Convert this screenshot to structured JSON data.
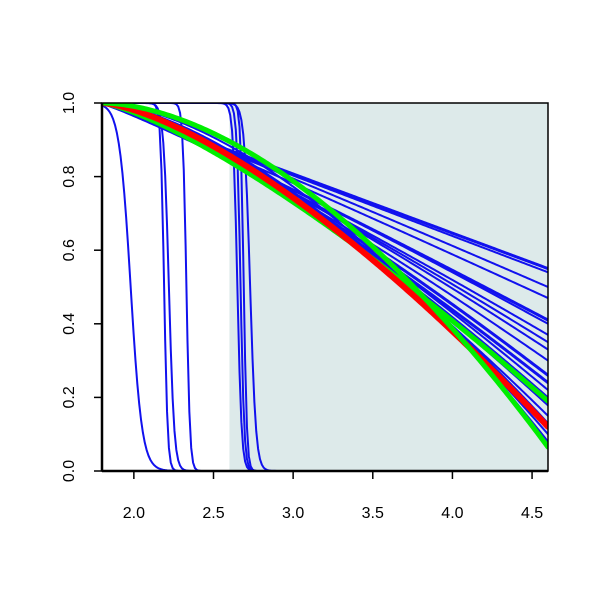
{
  "chart_data": {
    "type": "line",
    "title": "",
    "xlabel": "",
    "ylabel": "",
    "xlim": [
      1.8,
      4.6
    ],
    "ylim": [
      0.0,
      1.0
    ],
    "x_ticks": [
      "2.0",
      "2.5",
      "3.0",
      "3.5",
      "4.0",
      "4.5"
    ],
    "y_ticks": [
      "0.0",
      "0.2",
      "0.4",
      "0.6",
      "0.8",
      "1.0"
    ],
    "grid": false,
    "legend": "none",
    "shaded_region": {
      "x_start": 2.6,
      "x_end": 4.6,
      "color": "#ddeaea"
    },
    "colors": {
      "blue": "#1111ee",
      "red": "#ff0000",
      "green": "#00ee00"
    },
    "series": [
      {
        "color": "blue",
        "kind": "logistic",
        "x0": 1.98,
        "k": 28,
        "width": 2
      },
      {
        "color": "blue",
        "kind": "logistic",
        "x0": 2.19,
        "k": 90,
        "width": 2
      },
      {
        "color": "blue",
        "kind": "logistic",
        "x0": 2.33,
        "k": 90,
        "width": 2
      },
      {
        "color": "blue",
        "kind": "logistic",
        "x0": 2.22,
        "k": 60,
        "width": 2
      },
      {
        "color": "blue",
        "kind": "logistic",
        "x0": 2.65,
        "k": 75,
        "width": 2
      },
      {
        "color": "blue",
        "kind": "logistic",
        "x0": 2.67,
        "k": 85,
        "width": 2
      },
      {
        "color": "blue",
        "kind": "logistic",
        "x0": 2.69,
        "k": 100,
        "width": 2
      },
      {
        "color": "blue",
        "kind": "logistic",
        "x0": 2.73,
        "k": 55,
        "width": 2
      },
      {
        "color": "blue",
        "kind": "power",
        "end": 0.55,
        "p": 1.0,
        "width": 3
      },
      {
        "color": "blue",
        "kind": "power",
        "end": 0.54,
        "p": 1.0,
        "width": 2
      },
      {
        "color": "blue",
        "kind": "power",
        "end": 0.5,
        "p": 1.05,
        "width": 2
      },
      {
        "color": "blue",
        "kind": "power",
        "end": 0.47,
        "p": 1.05,
        "width": 2
      },
      {
        "color": "blue",
        "kind": "power",
        "end": 0.41,
        "p": 1.08,
        "width": 3
      },
      {
        "color": "blue",
        "kind": "power",
        "end": 0.4,
        "p": 1.1,
        "width": 2
      },
      {
        "color": "blue",
        "kind": "power",
        "end": 0.37,
        "p": 1.12,
        "width": 2
      },
      {
        "color": "blue",
        "kind": "power",
        "end": 0.35,
        "p": 1.15,
        "width": 2
      },
      {
        "color": "blue",
        "kind": "power",
        "end": 0.33,
        "p": 1.18,
        "width": 2
      },
      {
        "color": "blue",
        "kind": "power",
        "end": 0.3,
        "p": 1.2,
        "width": 2
      },
      {
        "color": "blue",
        "kind": "power",
        "end": 0.26,
        "p": 1.25,
        "width": 3
      },
      {
        "color": "blue",
        "kind": "power",
        "end": 0.24,
        "p": 1.25,
        "width": 3
      },
      {
        "color": "blue",
        "kind": "power",
        "end": 0.22,
        "p": 1.3,
        "width": 2
      },
      {
        "color": "blue",
        "kind": "power",
        "end": 0.2,
        "p": 1.32,
        "width": 2
      },
      {
        "color": "blue",
        "kind": "power",
        "end": 0.18,
        "p": 1.35,
        "width": 3
      },
      {
        "color": "blue",
        "kind": "power",
        "end": 0.15,
        "p": 1.4,
        "width": 2
      },
      {
        "color": "blue",
        "kind": "power",
        "end": 0.13,
        "p": 1.5,
        "width": 2
      },
      {
        "color": "blue",
        "kind": "power",
        "end": 0.1,
        "p": 1.55,
        "width": 2
      },
      {
        "color": "blue",
        "kind": "power",
        "end": 0.08,
        "p": 1.65,
        "width": 2
      },
      {
        "color": "green",
        "kind": "power",
        "end": 0.19,
        "p": 1.3,
        "width": 5
      },
      {
        "color": "red",
        "kind": "power",
        "end": 0.12,
        "p": 1.45,
        "width": 6
      },
      {
        "color": "green",
        "kind": "power",
        "end": 0.065,
        "p": 1.75,
        "width": 5
      }
    ]
  }
}
